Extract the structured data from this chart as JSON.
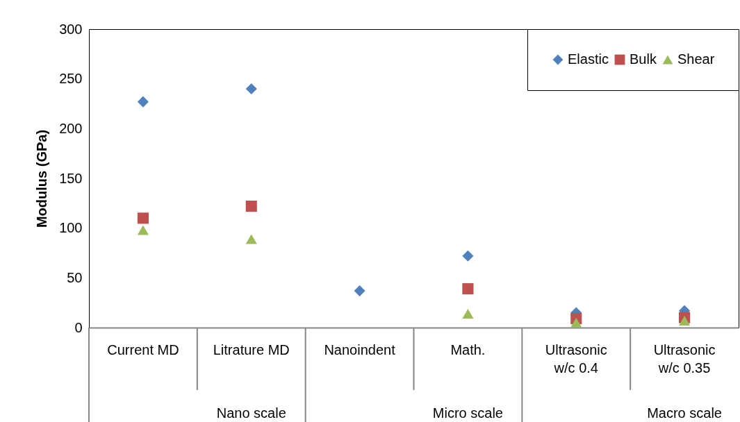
{
  "chart_data": {
    "type": "scatter",
    "ylabel": "Modulus (GPa)",
    "categories": [
      "Current MD",
      "Litrature MD",
      "Nanoindent",
      "Math.",
      "Ultrasonic\nw/c 0.4",
      "Ultrasonic\nw/c 0.35"
    ],
    "series": [
      {
        "name": "Elastic",
        "color": "#4f81bd",
        "marker": "diamond",
        "values": [
          227,
          240,
          37,
          72,
          15,
          17
        ]
      },
      {
        "name": "Bulk",
        "color": "#c0504d",
        "marker": "square",
        "values": [
          110,
          122,
          null,
          39,
          9,
          10
        ]
      },
      {
        "name": "Shear",
        "color": "#9bbb59",
        "marker": "triangle",
        "values": [
          98,
          89,
          null,
          14,
          5,
          7
        ]
      }
    ],
    "annotations": [
      "Nano scale",
      "Micro scale",
      "Macro scale"
    ],
    "ylim": [
      0,
      300
    ],
    "yticks": [
      0,
      50,
      100,
      150,
      200,
      250,
      300
    ],
    "grid": false,
    "legend": "top right"
  }
}
